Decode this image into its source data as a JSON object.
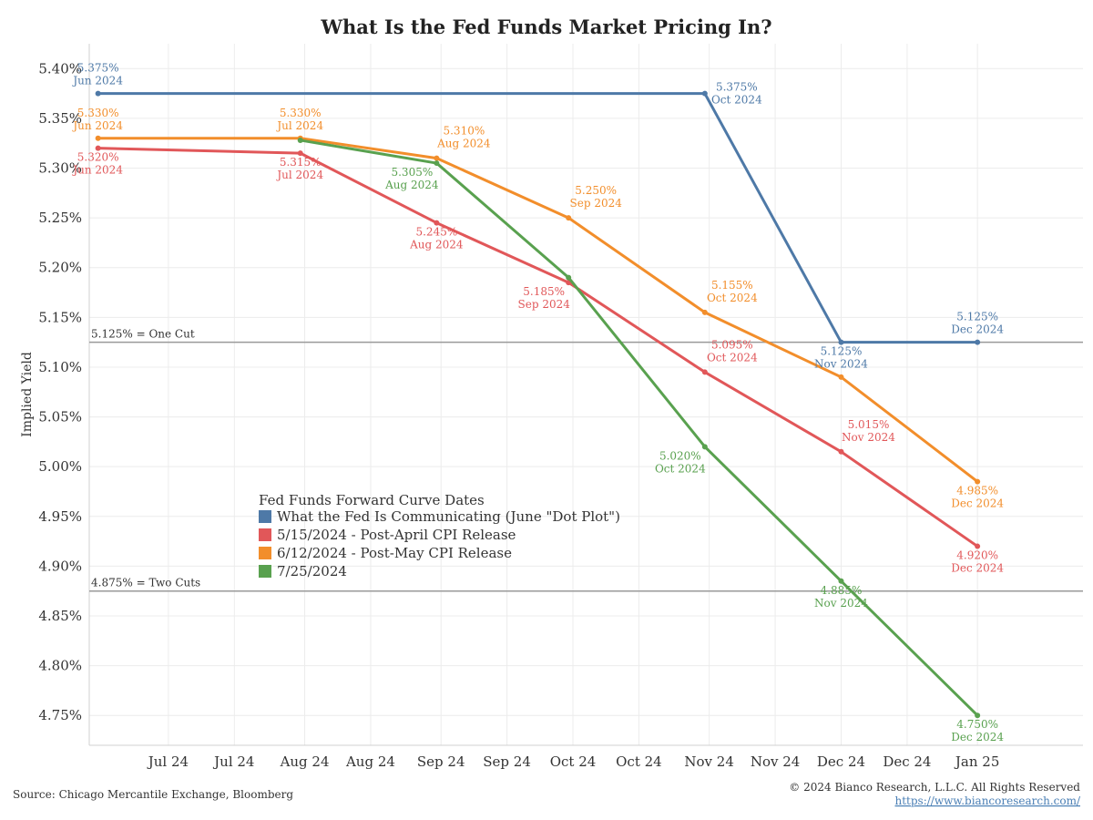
{
  "chart_data": {
    "type": "line",
    "title": "What Is the Fed Funds Market Pricing In?",
    "ylabel": "Implied Yield",
    "xlabel": "",
    "ylim": [
      4.72,
      5.425
    ],
    "xlim": [
      "2024-06-13",
      "2025-01-25"
    ],
    "y_ticks": [
      "5.40%",
      "5.35%",
      "5.30%",
      "5.25%",
      "5.20%",
      "5.15%",
      "5.10%",
      "5.05%",
      "5.00%",
      "4.95%",
      "4.90%",
      "4.85%",
      "4.80%",
      "4.75%"
    ],
    "x_ticks": [
      {
        "label": "Jul 24",
        "date": "2024-07-01"
      },
      {
        "label": "Jul 24",
        "date": "2024-07-16"
      },
      {
        "label": "Aug 24",
        "date": "2024-08-01"
      },
      {
        "label": "Aug 24",
        "date": "2024-08-16"
      },
      {
        "label": "Sep 24",
        "date": "2024-09-01"
      },
      {
        "label": "Sep 24",
        "date": "2024-09-16"
      },
      {
        "label": "Oct 24",
        "date": "2024-10-01"
      },
      {
        "label": "Oct 24",
        "date": "2024-10-16"
      },
      {
        "label": "Nov 24",
        "date": "2024-11-01"
      },
      {
        "label": "Nov 24",
        "date": "2024-11-16"
      },
      {
        "label": "Dec 24",
        "date": "2024-12-01"
      },
      {
        "label": "Dec 24",
        "date": "2024-12-16"
      },
      {
        "label": "Jan 25",
        "date": "2025-01-01"
      }
    ],
    "grid": true,
    "legend_title": "Fed Funds Forward Curve Dates",
    "legend_placement": "center-left",
    "reference_lines": [
      {
        "value": 5.125,
        "label": "5.125% = One Cut"
      },
      {
        "value": 4.875,
        "label": "4.875% = Two Cuts"
      }
    ],
    "series": [
      {
        "name": "What the Fed Is Communicating (June \"Dot Plot\")",
        "color": "#4e79a7",
        "points": [
          {
            "x": "2024-06-15",
            "y": 5.375,
            "value_label": "5.375%",
            "date_label": "Jun 2024",
            "label_pos": "above"
          },
          {
            "x": "2024-10-31",
            "y": 5.375,
            "value_label": "5.375%",
            "date_label": "Oct 2024",
            "label_pos": "below-right"
          },
          {
            "x": "2024-12-01",
            "y": 5.125,
            "value_label": "5.125%",
            "date_label": "Nov 2024",
            "label_pos": "below"
          },
          {
            "x": "2025-01-01",
            "y": 5.125,
            "value_label": "5.125%",
            "date_label": "Dec 2024",
            "label_pos": "above"
          }
        ]
      },
      {
        "name": "5/15/2024 - Post-April CPI Release",
        "color": "#e15759",
        "points": [
          {
            "x": "2024-06-15",
            "y": 5.32,
            "value_label": "5.320%",
            "date_label": "Jun 2024",
            "label_pos": "below"
          },
          {
            "x": "2024-07-31",
            "y": 5.315,
            "value_label": "5.315%",
            "date_label": "Jul 2024",
            "label_pos": "below"
          },
          {
            "x": "2024-08-31",
            "y": 5.245,
            "value_label": "5.245%",
            "date_label": "Aug 2024",
            "label_pos": "below"
          },
          {
            "x": "2024-09-30",
            "y": 5.185,
            "value_label": "5.185%",
            "date_label": "Sep 2024",
            "label_pos": "below-left"
          },
          {
            "x": "2024-10-31",
            "y": 5.095,
            "value_label": "5.095%",
            "date_label": "Oct 2024",
            "label_pos": "above-right"
          },
          {
            "x": "2024-12-01",
            "y": 5.015,
            "value_label": "5.015%",
            "date_label": "Nov 2024",
            "label_pos": "above-right"
          },
          {
            "x": "2025-01-01",
            "y": 4.92,
            "value_label": "4.920%",
            "date_label": "Dec 2024",
            "label_pos": "below"
          }
        ]
      },
      {
        "name": "6/12/2024 - Post-May CPI Release",
        "color": "#f28e2b",
        "points": [
          {
            "x": "2024-06-15",
            "y": 5.33,
            "value_label": "5.330%",
            "date_label": "Jun 2024",
            "label_pos": "above"
          },
          {
            "x": "2024-07-31",
            "y": 5.33,
            "value_label": "5.330%",
            "date_label": "Jul 2024",
            "label_pos": "above"
          },
          {
            "x": "2024-08-31",
            "y": 5.31,
            "value_label": "5.310%",
            "date_label": "Aug 2024",
            "label_pos": "above-right"
          },
          {
            "x": "2024-09-30",
            "y": 5.25,
            "value_label": "5.250%",
            "date_label": "Sep 2024",
            "label_pos": "above-right"
          },
          {
            "x": "2024-10-31",
            "y": 5.155,
            "value_label": "5.155%",
            "date_label": "Oct 2024",
            "label_pos": "above-right"
          },
          {
            "x": "2024-12-01",
            "y": 5.09
          },
          {
            "x": "2025-01-01",
            "y": 4.985,
            "value_label": "4.985%",
            "date_label": "Dec 2024",
            "label_pos": "below"
          }
        ]
      },
      {
        "name": "7/25/2024",
        "color": "#59a14f",
        "points": [
          {
            "x": "2024-07-31",
            "y": 5.328
          },
          {
            "x": "2024-08-31",
            "y": 5.305,
            "value_label": "5.305%",
            "date_label": "Aug 2024",
            "label_pos": "below-left"
          },
          {
            "x": "2024-09-30",
            "y": 5.19
          },
          {
            "x": "2024-10-31",
            "y": 5.02,
            "value_label": "5.020%",
            "date_label": "Oct 2024",
            "label_pos": "below-left"
          },
          {
            "x": "2024-12-01",
            "y": 4.885,
            "value_label": "4.885%",
            "date_label": "Nov 2024",
            "label_pos": "below"
          },
          {
            "x": "2025-01-01",
            "y": 4.75,
            "value_label": "4.750%",
            "date_label": "Dec 2024",
            "label_pos": "below"
          }
        ]
      }
    ]
  },
  "footer": {
    "source": "Source: Chicago Mercantile Exchange, Bloomberg",
    "copyright": "© 2024 Bianco Research, L.L.C. All Rights Reserved",
    "url": "https://www.biancoresearch.com/"
  }
}
